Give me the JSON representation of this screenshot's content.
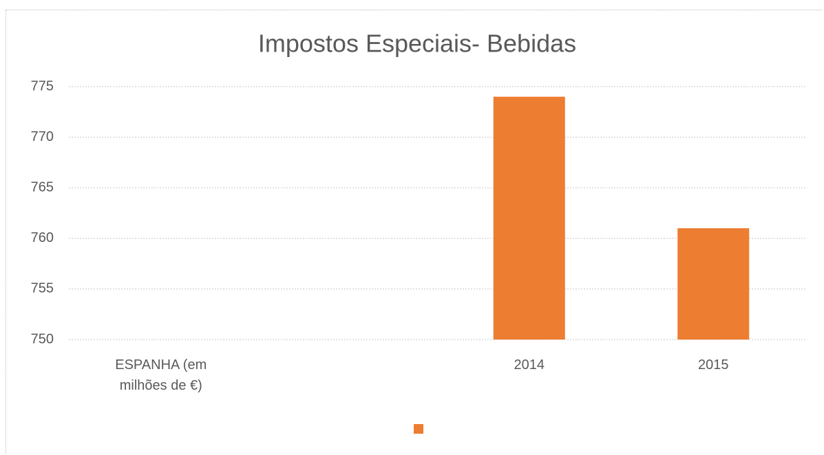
{
  "chart_data": {
    "type": "bar",
    "title": "Impostos Especiais- Bebidas",
    "categories": [
      "ESPANHA (em milhões de €)",
      null,
      "2014",
      "2015"
    ],
    "series": [
      {
        "color": "#ed7d31",
        "values": [
          null,
          null,
          774,
          761
        ]
      }
    ],
    "ylim": [
      750,
      775
    ],
    "yticks": [
      750,
      755,
      760,
      765,
      770,
      775
    ],
    "grid": true
  }
}
